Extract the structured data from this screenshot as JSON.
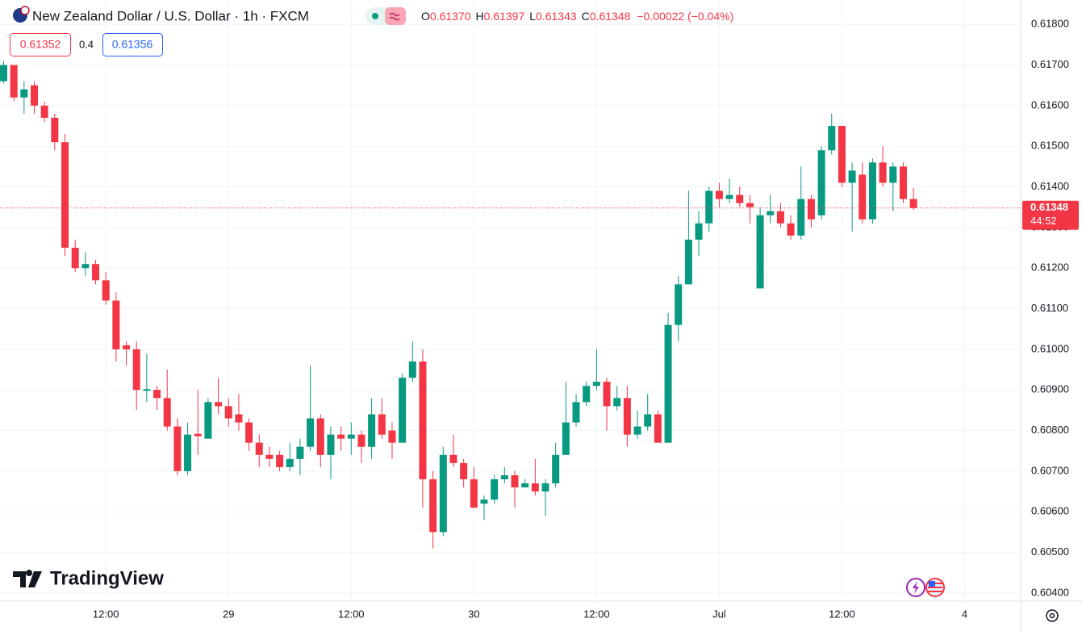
{
  "header": {
    "symbol": "New Zealand Dollar / U.S. Dollar · 1h · FXCM",
    "o_label": "O",
    "o": "0.61370",
    "h_label": "H",
    "h": "0.61397",
    "l_label": "L",
    "l": "0.61343",
    "c_label": "C",
    "c": "0.61348",
    "change": "−0.00022 (−0.04%)",
    "bid": "0.61352",
    "spread": "0.4",
    "ask": "0.61356",
    "price_tag": "0.61348",
    "countdown": "44:52",
    "watermark": "TradingView"
  },
  "chart_data": {
    "type": "candlestick",
    "colors": {
      "up": "#089981",
      "down": "#f23645"
    },
    "grid": true,
    "categories": [
      null,
      null,
      null,
      null,
      null,
      null,
      null,
      null,
      null,
      null,
      "12:00",
      null,
      null,
      null,
      null,
      null,
      null,
      null,
      null,
      null,
      null,
      null,
      "29",
      null,
      null,
      null,
      null,
      null,
      null,
      null,
      null,
      null,
      null,
      null,
      "12:00",
      null,
      null,
      null,
      null,
      null,
      null,
      null,
      null,
      null,
      null,
      null,
      "30",
      null,
      null,
      null,
      null,
      null,
      null,
      null,
      null,
      null,
      null,
      null,
      "12:00",
      null,
      null,
      null,
      null,
      null,
      null,
      null,
      null,
      null,
      null,
      null,
      "Jul",
      null,
      null,
      null,
      null,
      null,
      null,
      null,
      null,
      null,
      null,
      null,
      "12:00",
      null,
      null,
      null,
      null,
      null,
      null,
      null,
      null,
      null,
      null,
      null,
      "4"
    ],
    "open": [
      0.6166,
      0.617,
      0.6162,
      0.6165,
      0.616,
      0.6157,
      0.6151,
      0.6125,
      0.612,
      0.6121,
      0.6117,
      0.6112,
      0.6101,
      0.61,
      0.60898,
      0.609,
      0.6088,
      0.6081,
      0.607,
      0.60792,
      0.6078,
      0.6087,
      0.6086,
      0.6084,
      0.6082,
      0.6077,
      0.6074,
      0.6074,
      0.6071,
      0.6073,
      0.6076,
      0.6083,
      0.6074,
      0.6079,
      0.6078,
      0.6079,
      0.6076,
      0.6084,
      0.608,
      0.6077,
      0.6093,
      0.6097,
      0.6068,
      0.6055,
      0.6074,
      0.6072,
      0.6068,
      0.6062,
      0.6063,
      0.6068,
      0.6069,
      0.6066,
      0.6067,
      0.6065,
      0.6067,
      0.6074,
      0.6082,
      0.6087,
      0.6091,
      0.6092,
      0.6086,
      0.6088,
      0.6079,
      0.6081,
      0.6084,
      0.6077,
      0.6106,
      0.6116,
      0.6127,
      0.6131,
      0.6139,
      0.6137,
      0.6138,
      0.6136,
      0.6115,
      0.6133,
      0.6134,
      0.6131,
      0.6128,
      0.6137,
      0.6133,
      0.6149,
      0.6155,
      0.6141,
      0.6143,
      0.6132,
      0.6146,
      0.6141,
      0.6145,
      0.6137,
      null,
      null,
      null,
      null,
      null
    ],
    "high": [
      0.6171,
      0.617,
      0.6166,
      0.6166,
      0.6161,
      0.6158,
      0.6153,
      0.6127,
      0.6124,
      0.6122,
      0.6119,
      0.6114,
      0.6102,
      0.6102,
      0.6099,
      0.6091,
      0.6095,
      0.6083,
      0.6082,
      0.609,
      0.6088,
      0.6093,
      0.6088,
      0.6089,
      0.6083,
      0.6079,
      0.6076,
      0.6075,
      0.6077,
      0.6078,
      0.6096,
      0.6084,
      0.6081,
      0.6081,
      0.6082,
      0.608,
      0.6088,
      0.6088,
      0.6082,
      0.6094,
      0.6102,
      0.61,
      0.607,
      0.6076,
      0.6079,
      0.6073,
      0.6071,
      0.6064,
      0.6069,
      0.6071,
      0.607,
      0.6068,
      0.6073,
      0.6068,
      0.6077,
      0.6092,
      0.6089,
      0.6092,
      0.61,
      0.6093,
      0.6091,
      0.6091,
      0.6085,
      0.6089,
      0.6085,
      0.6109,
      0.6118,
      0.6139,
      0.6134,
      0.614,
      0.6141,
      0.6142,
      0.614,
      0.6138,
      0.6135,
      0.6138,
      0.6136,
      0.6133,
      0.6145,
      0.6138,
      0.615,
      0.6158,
      0.6155,
      0.6146,
      0.6146,
      0.6147,
      0.615,
      0.6146,
      0.6146,
      0.61397,
      null,
      null,
      null,
      null,
      null
    ],
    "low": [
      0.61655,
      0.6161,
      0.6158,
      0.6158,
      0.6156,
      0.6149,
      0.6123,
      0.6119,
      0.6118,
      0.6116,
      0.6111,
      0.6097,
      0.6096,
      0.6085,
      0.6087,
      0.6085,
      0.608,
      0.6069,
      0.6069,
      0.6074,
      0.6078,
      0.6084,
      0.6081,
      0.608,
      0.6075,
      0.6071,
      0.6071,
      0.607,
      0.607,
      0.6069,
      0.6075,
      0.6071,
      0.6068,
      0.6075,
      0.6074,
      0.6072,
      0.6073,
      0.6078,
      0.6073,
      0.6077,
      0.6092,
      0.6061,
      0.6051,
      0.6054,
      0.6071,
      0.6066,
      0.6061,
      0.6058,
      0.6062,
      0.6067,
      0.6061,
      0.6066,
      0.6064,
      0.6059,
      0.6066,
      0.6074,
      0.6081,
      0.6086,
      0.609,
      0.608,
      0.6085,
      0.6076,
      0.6078,
      0.608,
      0.6077,
      0.6077,
      0.6102,
      0.6116,
      0.6123,
      0.6129,
      0.6135,
      0.6136,
      0.6135,
      0.6131,
      0.6115,
      0.6131,
      0.613,
      0.6127,
      0.6127,
      0.613,
      0.6132,
      0.6148,
      0.614,
      0.6129,
      0.6131,
      0.6131,
      0.614,
      0.6134,
      0.6136,
      0.61343,
      null,
      null,
      null,
      null,
      null
    ],
    "close": [
      0.617,
      0.6162,
      0.6164,
      0.616,
      0.6157,
      0.6151,
      0.6125,
      0.612,
      0.6121,
      0.6117,
      0.6112,
      0.61,
      0.61,
      0.609,
      0.60902,
      0.6088,
      0.6081,
      0.607,
      0.6079,
      0.60786,
      0.6087,
      0.6086,
      0.6083,
      0.6082,
      0.6077,
      0.6074,
      0.6073,
      0.6071,
      0.6073,
      0.6076,
      0.6083,
      0.6074,
      0.6079,
      0.6078,
      0.6079,
      0.6076,
      0.6084,
      0.6079,
      0.6077,
      0.6093,
      0.6097,
      0.6068,
      0.6055,
      0.6074,
      0.6072,
      0.6068,
      0.6061,
      0.6063,
      0.6068,
      0.6069,
      0.6066,
      0.6067,
      0.6065,
      0.6067,
      0.6074,
      0.6082,
      0.6087,
      0.6091,
      0.6092,
      0.6086,
      0.6088,
      0.6079,
      0.6081,
      0.6084,
      0.6077,
      0.6106,
      0.6116,
      0.6127,
      0.6131,
      0.6139,
      0.6137,
      0.6138,
      0.6136,
      0.6135,
      0.6133,
      0.6134,
      0.6131,
      0.6128,
      0.6137,
      0.6132,
      0.6149,
      0.6155,
      0.6141,
      0.6144,
      0.6132,
      0.6146,
      0.6141,
      0.6145,
      0.6137,
      0.61348,
      null,
      null,
      null,
      null,
      null
    ],
    "ylim": [
      0.6038,
      0.6186
    ],
    "yticks": [
      {
        "value": 0.604,
        "label": "0.60400"
      },
      {
        "value": 0.605,
        "label": "0.60500"
      },
      {
        "value": 0.606,
        "label": "0.60600"
      },
      {
        "value": 0.607,
        "label": "0.60700"
      },
      {
        "value": 0.608,
        "label": "0.60800"
      },
      {
        "value": 0.609,
        "label": "0.60900"
      },
      {
        "value": 0.61,
        "label": "0.61000"
      },
      {
        "value": 0.611,
        "label": "0.61100"
      },
      {
        "value": 0.612,
        "label": "0.61200"
      },
      {
        "value": 0.613,
        "label": "0.61300"
      },
      {
        "value": 0.614,
        "label": "0.61400"
      },
      {
        "value": 0.615,
        "label": "0.61500"
      },
      {
        "value": 0.616,
        "label": "0.61600"
      },
      {
        "value": 0.617,
        "label": "0.61700"
      },
      {
        "value": 0.618,
        "label": "0.61800"
      }
    ]
  }
}
